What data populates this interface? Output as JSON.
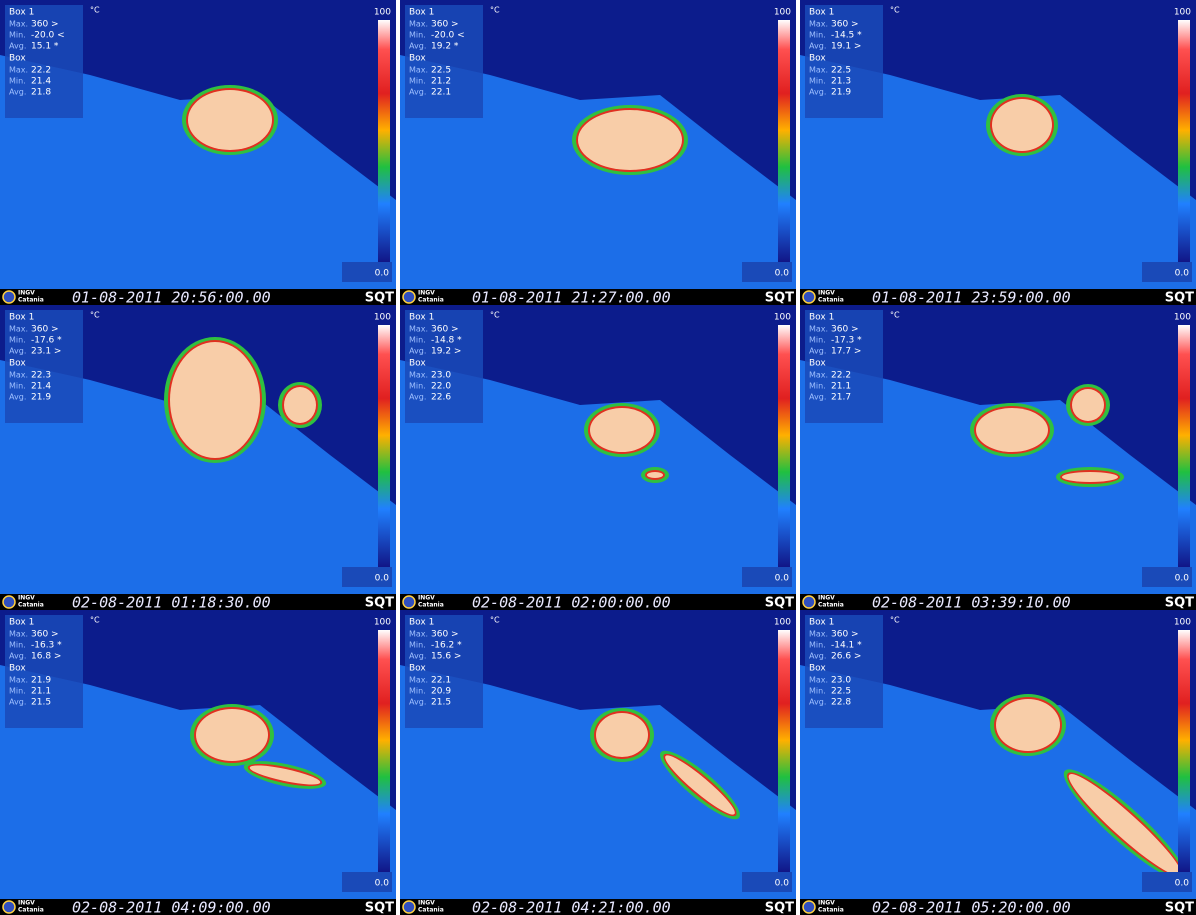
{
  "labels": {
    "box1": "Box 1",
    "unit": "°C",
    "box": "Box",
    "max": "Max.",
    "min": "Min.",
    "avg": "Avg.",
    "scale_max": "100",
    "scale_min": "0.0",
    "logo_top": "INGV",
    "logo_bottom": "Catania",
    "camera": "SQT"
  },
  "panels": [
    {
      "timestamp": "01-08-2011 20:56:00.00",
      "box1": {
        "max": "360 >",
        "min": "-20.0 <",
        "avg": "15.1 *"
      },
      "box": {
        "max": "22.2",
        "min": "21.4",
        "avg": "21.8"
      }
    },
    {
      "timestamp": "01-08-2011 21:27:00.00",
      "box1": {
        "max": "360 >",
        "min": "-20.0 <",
        "avg": "19.2 *"
      },
      "box": {
        "max": "22.5",
        "min": "21.2",
        "avg": "22.1"
      }
    },
    {
      "timestamp": "01-08-2011 23:59:00.00",
      "box1": {
        "max": "360 >",
        "min": "-14.5 *",
        "avg": "19.1 >"
      },
      "box": {
        "max": "22.5",
        "min": "21.3",
        "avg": "21.9"
      }
    },
    {
      "timestamp": "02-08-2011 01:18:30.00",
      "box1": {
        "max": "360 >",
        "min": "-17.6 *",
        "avg": "23.1 >"
      },
      "box": {
        "max": "22.3",
        "min": "21.4",
        "avg": "21.9"
      }
    },
    {
      "timestamp": "02-08-2011 02:00:00.00",
      "box1": {
        "max": "360 >",
        "min": "-14.8 *",
        "avg": "19.2 >"
      },
      "box": {
        "max": "23.0",
        "min": "22.0",
        "avg": "22.6"
      }
    },
    {
      "timestamp": "02-08-2011 03:39:10.00",
      "box1": {
        "max": "360 >",
        "min": "-17.3 *",
        "avg": "17.7 >"
      },
      "box": {
        "max": "22.2",
        "min": "21.1",
        "avg": "21.7"
      }
    },
    {
      "timestamp": "02-08-2011 04:09:00.00",
      "box1": {
        "max": "360 >",
        "min": "-16.3 *",
        "avg": "16.8 >"
      },
      "box": {
        "max": "21.9",
        "min": "21.1",
        "avg": "21.5"
      }
    },
    {
      "timestamp": "02-08-2011 04:21:00.00",
      "box1": {
        "max": "360 >",
        "min": "-16.2 *",
        "avg": "15.6 >"
      },
      "box": {
        "max": "22.1",
        "min": "20.9",
        "avg": "21.5"
      }
    },
    {
      "timestamp": "02-08-2011 05:20:00.00",
      "box1": {
        "max": "360 >",
        "min": "-14.1 *",
        "avg": "26.6 >"
      },
      "box": {
        "max": "23.0",
        "min": "22.5",
        "avg": "22.8"
      }
    }
  ]
}
